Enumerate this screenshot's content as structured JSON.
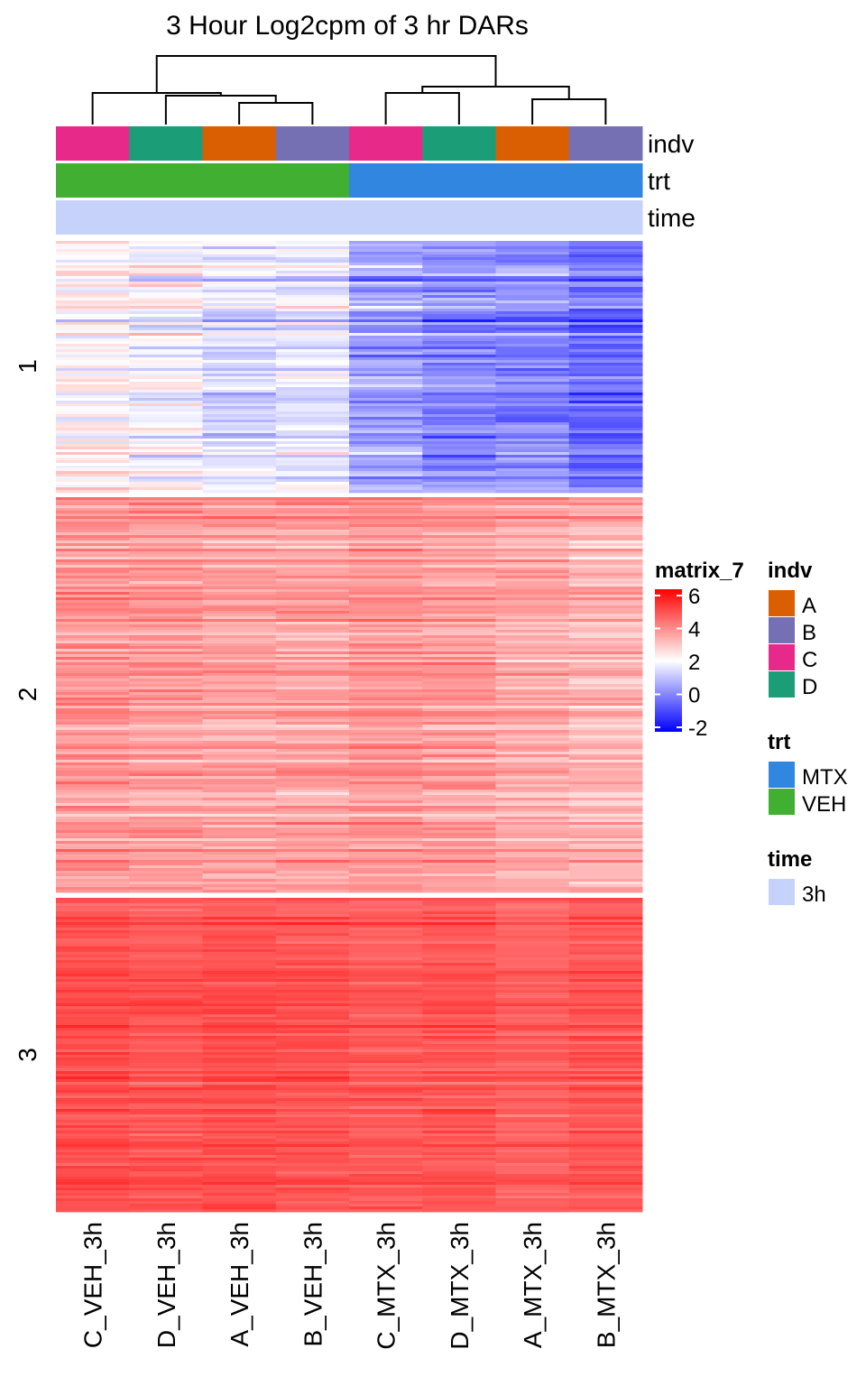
{
  "chart_data": {
    "type": "heatmap",
    "title": "3 Hour Log2cpm of 3 hr DARs",
    "columns": [
      "C_VEH_3h",
      "D_VEH_3h",
      "A_VEH_3h",
      "B_VEH_3h",
      "C_MTX_3h",
      "D_MTX_3h",
      "A_MTX_3h",
      "B_MTX_3h"
    ],
    "row_slices": [
      {
        "label": "1",
        "typical_values": [
          2.2,
          2.0,
          1.6,
          1.7,
          0.6,
          0.3,
          0.2,
          -0.2
        ]
      },
      {
        "label": "2",
        "typical_values": [
          3.6,
          3.5,
          3.4,
          3.4,
          3.6,
          3.5,
          3.3,
          3.1
        ]
      },
      {
        "label": "3",
        "typical_values": [
          4.8,
          4.7,
          4.8,
          4.7,
          4.6,
          4.7,
          4.5,
          4.7
        ]
      }
    ],
    "annotations": {
      "indv": {
        "label": "indv",
        "values": [
          "C",
          "D",
          "A",
          "B",
          "C",
          "D",
          "A",
          "B"
        ]
      },
      "trt": {
        "label": "trt",
        "values": [
          "VEH",
          "VEH",
          "VEH",
          "VEH",
          "MTX",
          "MTX",
          "MTX",
          "MTX"
        ]
      },
      "time": {
        "label": "time",
        "values": [
          "3h",
          "3h",
          "3h",
          "3h",
          "3h",
          "3h",
          "3h",
          "3h"
        ]
      }
    },
    "color_scale": {
      "name": "matrix_7",
      "stops": [
        {
          "value": -2,
          "color": "#0000ff"
        },
        {
          "value": 2,
          "color": "#ffffff"
        },
        {
          "value": 6,
          "color": "#ff0000"
        }
      ],
      "ticks": [
        "6",
        "4",
        "2",
        "0",
        "-2"
      ]
    },
    "legends": [
      {
        "title": "indv",
        "items": [
          {
            "label": "A",
            "color": "#d95f02"
          },
          {
            "label": "B",
            "color": "#7570b3"
          },
          {
            "label": "C",
            "color": "#e7298a"
          },
          {
            "label": "D",
            "color": "#1b9e77"
          }
        ]
      },
      {
        "title": "trt",
        "items": [
          {
            "label": "MTX",
            "color": "#3186e0"
          },
          {
            "label": "VEH",
            "color": "#41b032"
          }
        ]
      },
      {
        "title": "time",
        "items": [
          {
            "label": "3h",
            "color": "#c6d2fa"
          }
        ]
      }
    ],
    "dendrogram": "column clustering: (C_VEH, (D_VEH, (A_VEH, B_VEH))), ((C_MTX, D_MTX), (A_MTX, B_MTX))"
  }
}
